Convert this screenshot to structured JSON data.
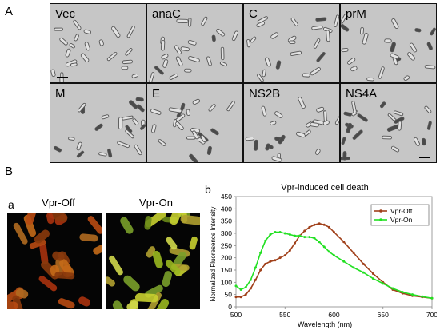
{
  "figure": {
    "panel_a_letter": "A",
    "panel_b_letter": "B",
    "sub_a_letter": "a",
    "sub_b_letter": "b"
  },
  "micrographs": [
    {
      "label": "Vec"
    },
    {
      "label": "anaC"
    },
    {
      "label": "C"
    },
    {
      "label": "prM"
    },
    {
      "label": "M"
    },
    {
      "label": "E"
    },
    {
      "label": "NS2B"
    },
    {
      "label": "NS4A"
    }
  ],
  "fluorescence": {
    "off_title": "Vpr-Off",
    "on_title": "Vpr-On"
  },
  "chart_data": {
    "type": "line",
    "title": "Vpr-induced cell death",
    "xlabel": "Wavelength (nm)",
    "ylabel": "Normalized Fluoresence Intensity",
    "xlim": [
      500,
      700
    ],
    "ylim": [
      0,
      450
    ],
    "xticks": [
      500,
      550,
      600,
      650,
      700
    ],
    "yticks": [
      0,
      50,
      100,
      150,
      200,
      250,
      300,
      350,
      400,
      450
    ],
    "legend_position": "top-right",
    "series": [
      {
        "name": "Vpr-Off",
        "color": "#a0401a",
        "x": [
          500,
          505,
          510,
          515,
          520,
          525,
          530,
          535,
          540,
          545,
          550,
          555,
          560,
          565,
          570,
          575,
          580,
          585,
          590,
          595,
          600,
          610,
          620,
          630,
          640,
          650,
          660,
          670,
          680,
          690,
          700
        ],
        "y": [
          40,
          40,
          50,
          75,
          110,
          150,
          175,
          185,
          190,
          200,
          210,
          230,
          260,
          290,
          310,
          325,
          335,
          340,
          335,
          325,
          305,
          265,
          220,
          175,
          135,
          100,
          70,
          55,
          45,
          40,
          35
        ]
      },
      {
        "name": "Vpr-On",
        "color": "#22e022",
        "x": [
          500,
          505,
          510,
          515,
          520,
          525,
          530,
          535,
          540,
          545,
          550,
          555,
          560,
          565,
          570,
          575,
          580,
          585,
          590,
          595,
          600,
          610,
          620,
          630,
          640,
          650,
          660,
          670,
          680,
          690,
          700
        ],
        "y": [
          85,
          70,
          80,
          110,
          160,
          220,
          270,
          295,
          305,
          305,
          300,
          295,
          290,
          290,
          285,
          285,
          280,
          265,
          245,
          225,
          210,
          185,
          160,
          140,
          115,
          95,
          75,
          60,
          50,
          42,
          35
        ]
      }
    ]
  }
}
